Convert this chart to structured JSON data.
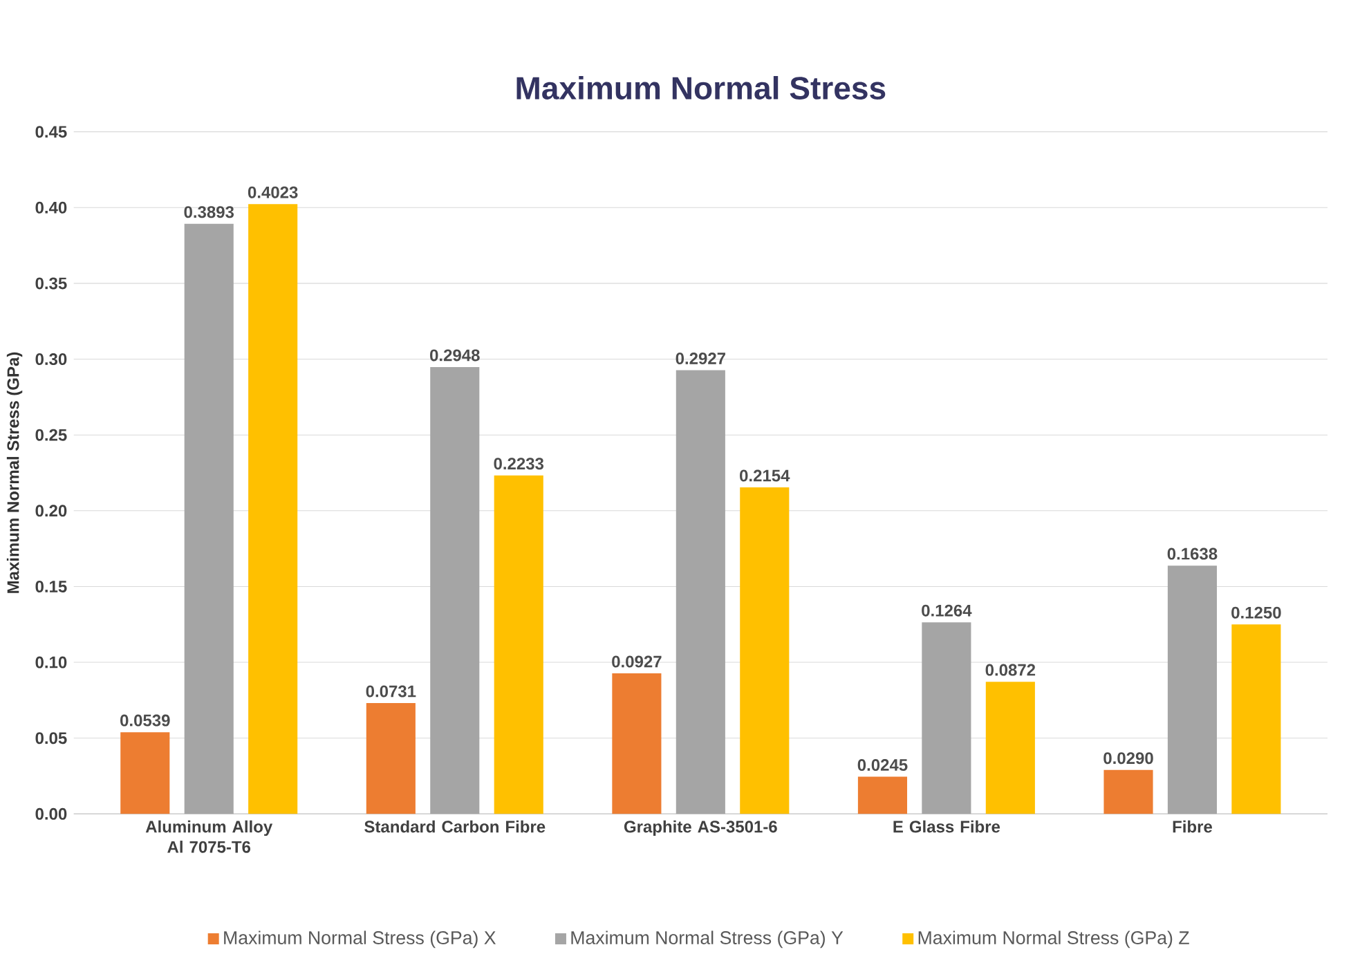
{
  "chart_data": {
    "type": "bar",
    "title": "Maximum Normal Stress",
    "ylabel": "Maximum Normal Stress (GPa)",
    "categories": [
      "Aluminum Alloy Al 7075-T6",
      "Standard Carbon Fibre",
      "Graphite AS-3501-6",
      "E Glass Fibre",
      "Fibre"
    ],
    "series": [
      {
        "name": "Maximum Normal Stress (GPa) X",
        "color": "#ed7d31",
        "values": [
          0.0539,
          0.0731,
          0.0927,
          0.0245,
          0.029
        ],
        "value_labels": [
          "0.0539",
          "0.0731",
          "0.0927",
          "0.0245",
          "0.0290"
        ]
      },
      {
        "name": "Maximum Normal Stress (GPa) Y",
        "color": "#a5a5a5",
        "values": [
          0.3893,
          0.2948,
          0.2927,
          0.1264,
          0.1638
        ],
        "value_labels": [
          "0.3893",
          "0.2948",
          "0.2927",
          "0.1264",
          "0.1638"
        ]
      },
      {
        "name": "Maximum Normal Stress (GPa) Z",
        "color": "#ffc000",
        "values": [
          0.4023,
          0.2233,
          0.2154,
          0.0872,
          0.125
        ],
        "value_labels": [
          "0.4023",
          "0.2233",
          "0.2154",
          "0.0872",
          "0.1250"
        ]
      }
    ],
    "ylim": [
      0,
      0.45
    ],
    "yticks": [
      {
        "value": 0,
        "label": "0.00"
      },
      {
        "value": 0.05,
        "label": "0.05"
      },
      {
        "value": 0.1,
        "label": "0.10"
      },
      {
        "value": 0.15,
        "label": "0.15"
      },
      {
        "value": 0.2,
        "label": "0.20"
      },
      {
        "value": 0.25,
        "label": "0.25"
      },
      {
        "value": 0.3,
        "label": "0.30"
      },
      {
        "value": 0.35,
        "label": "0.35"
      },
      {
        "value": 0.4,
        "label": "0.40"
      },
      {
        "value": 0.45,
        "label": "0.45"
      }
    ],
    "grid": "y",
    "legend": "bottom"
  }
}
